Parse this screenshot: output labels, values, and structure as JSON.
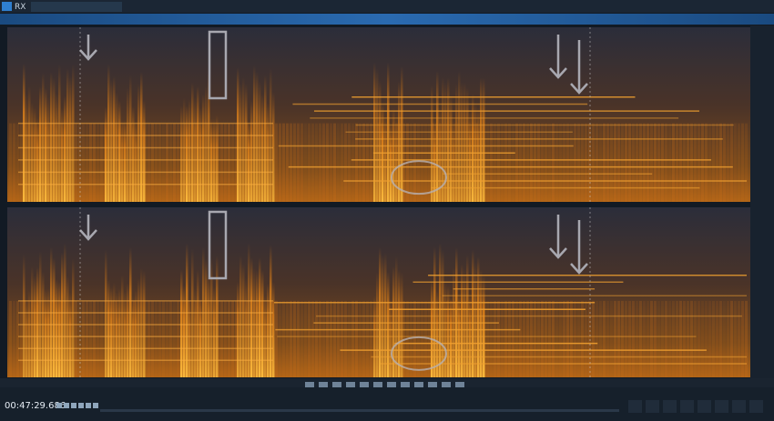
{
  "app": {
    "logo": "RX",
    "time_display": "00:47:29.686"
  }
}
